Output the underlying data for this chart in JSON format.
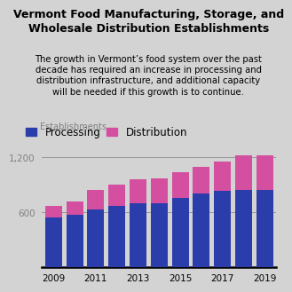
{
  "title_line1": "Vermont Food Manufacturing, Storage, and",
  "title_line2": "Wholesale Distribution Establishments",
  "subtitle": "The growth in Vermont’s food system over the past\ndecade has required an increase in processing and\ndistribution infrastructure, and additional capacity\nwill be needed if this growth is to continue.",
  "ylabel": "Establishments",
  "years": [
    2009,
    2010,
    2011,
    2012,
    2013,
    2014,
    2015,
    2016,
    2017,
    2018,
    2019
  ],
  "processing": [
    540,
    575,
    635,
    670,
    695,
    700,
    755,
    800,
    835,
    845,
    845
  ],
  "distribution": [
    130,
    145,
    210,
    230,
    265,
    270,
    285,
    295,
    320,
    375,
    375
  ],
  "processing_color": "#2B3DAB",
  "distribution_color": "#D44FA0",
  "background_color": "#D3D3D3",
  "yticks": [
    600,
    1200
  ],
  "ylim": [
    0,
    1350
  ],
  "xtick_years": [
    2009,
    2011,
    2013,
    2015,
    2017,
    2019
  ],
  "legend_processing": "Processing",
  "legend_distribution": "Distribution",
  "title_fontsize": 9.0,
  "subtitle_fontsize": 7.2,
  "ylabel_fontsize": 7.0
}
